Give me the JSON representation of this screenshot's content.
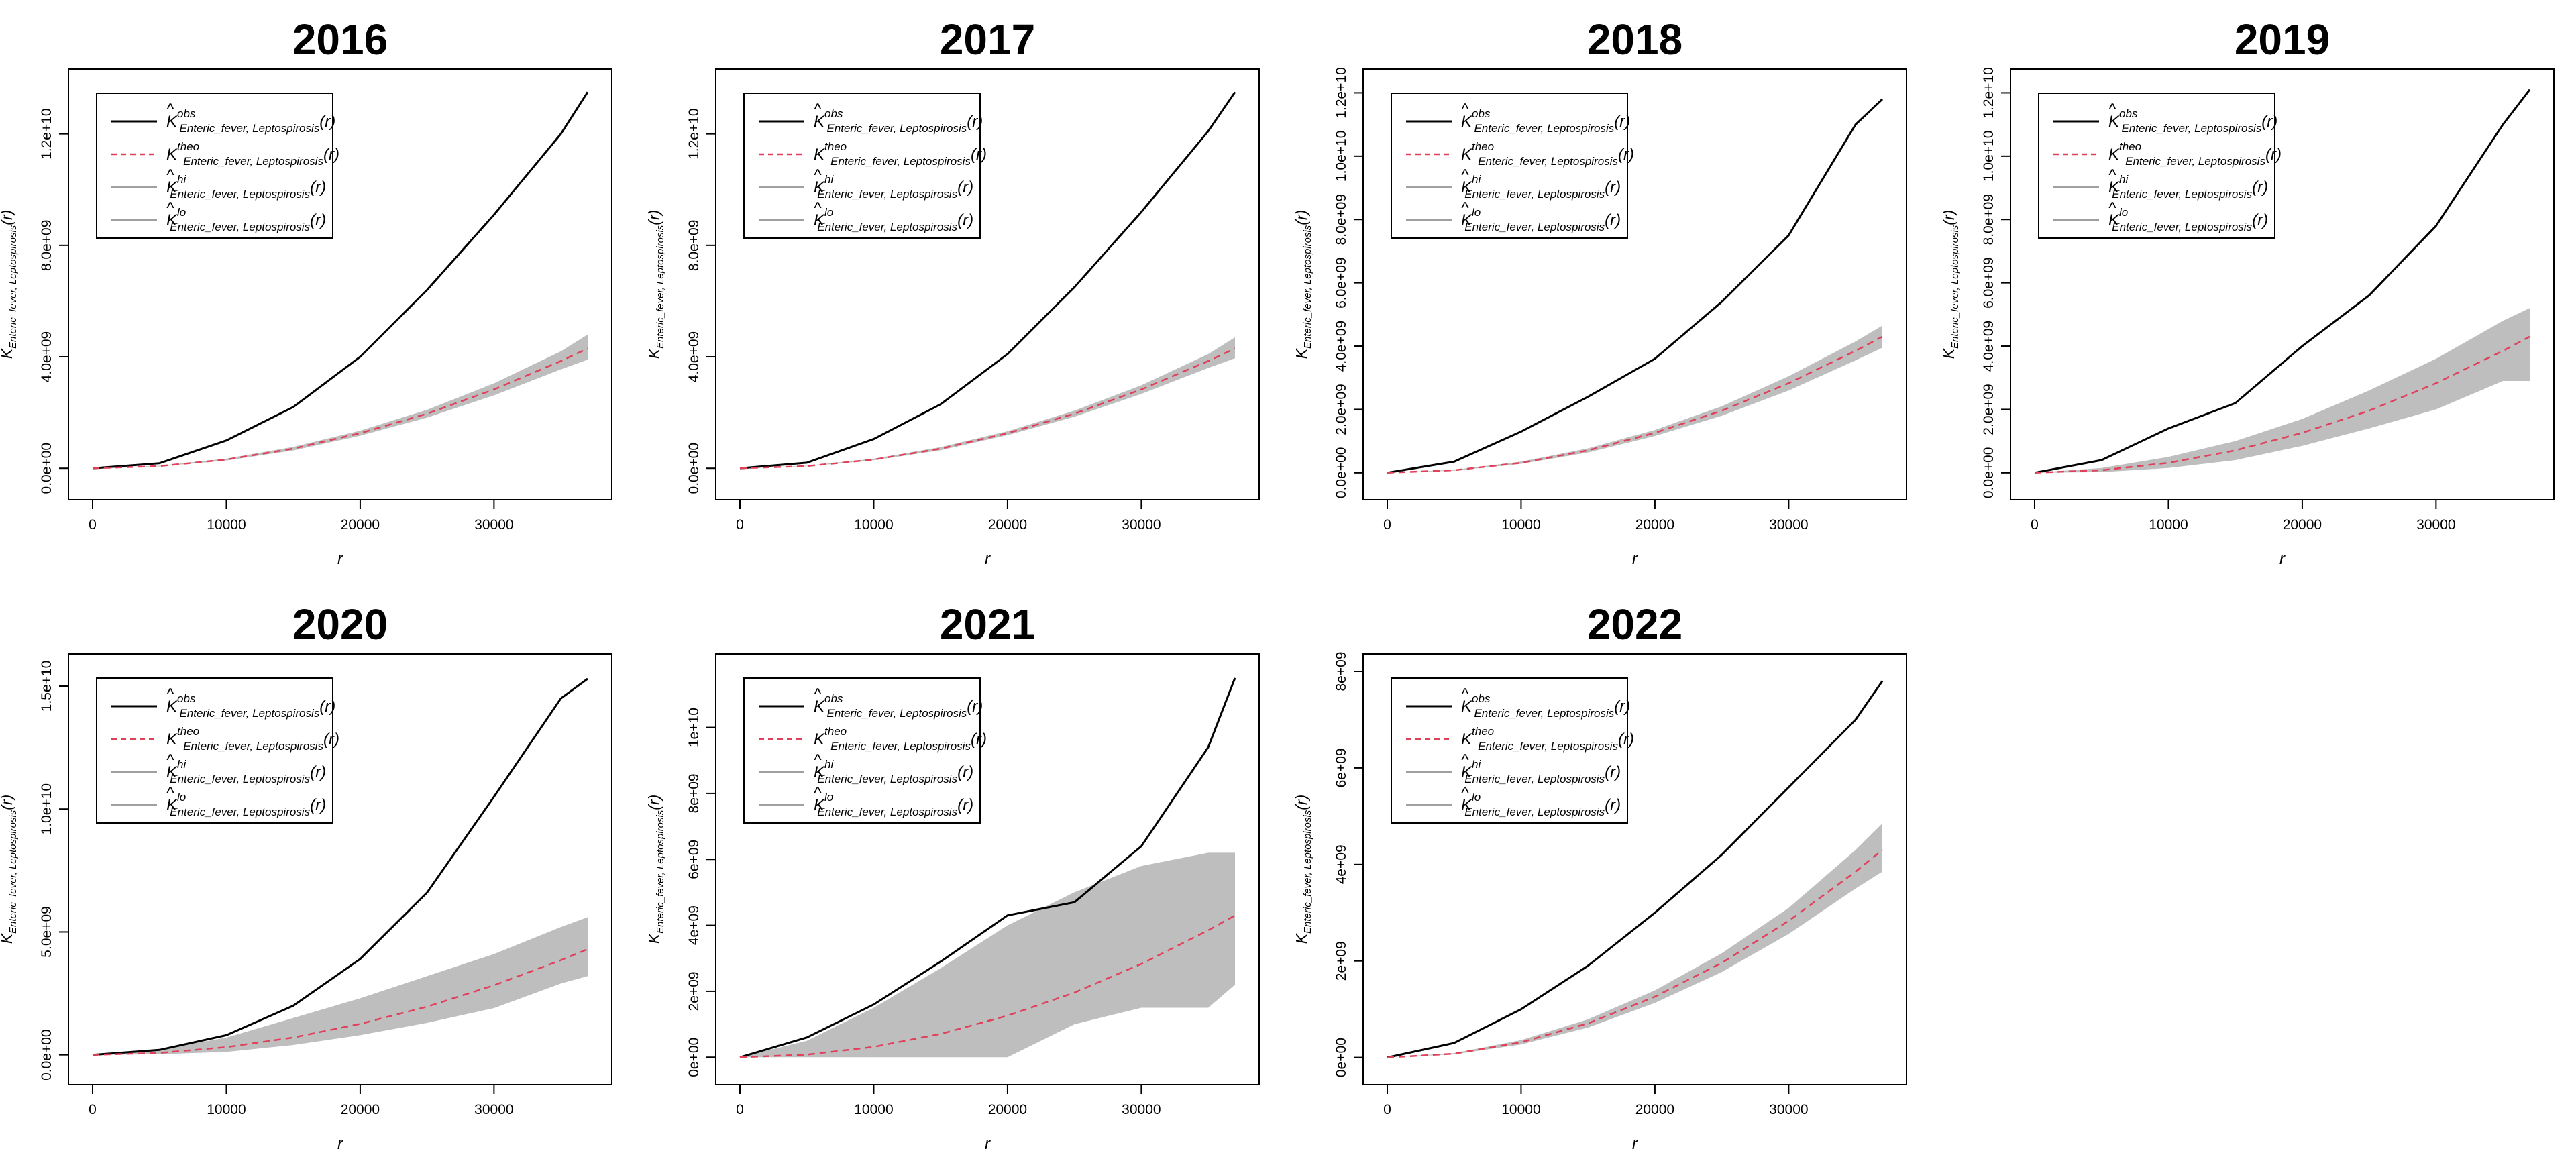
{
  "figure": {
    "panel_titles": [
      "2016",
      "2017",
      "2018",
      "2019",
      "2020",
      "2021",
      "2022"
    ],
    "xlabel": "r",
    "ylabel": {
      "main": "K",
      "sub": "Enteric_fever, Leptospirosis",
      "arg": "(r)"
    },
    "legend": [
      {
        "hat": "^",
        "main": "K",
        "sup": "obs",
        "sub": "Enteric_fever, Leptospirosis",
        "arg": "(r)",
        "style": "solid",
        "color": "#000000"
      },
      {
        "hat": "",
        "main": "K",
        "sup": "theo",
        "sub": "Enteric_fever, Leptospirosis",
        "arg": "(r)",
        "style": "dashed",
        "color": "#e0405a"
      },
      {
        "hat": "^",
        "main": "K",
        "sup": "hi",
        "sub": "Enteric_fever, Leptospirosis",
        "arg": "(r)",
        "style": "solid",
        "color": "#a0a0a0"
      },
      {
        "hat": "^",
        "main": "K",
        "sup": "lo",
        "sub": "Enteric_fever, Leptospirosis",
        "arg": "(r)",
        "style": "solid",
        "color": "#a0a0a0"
      }
    ],
    "colors": {
      "obs": "#000000",
      "theo": "#e0405a",
      "envelope": "#bebebe",
      "frame": "#000000"
    }
  },
  "chart_data": [
    {
      "type": "line",
      "title": "2016",
      "xlabel": "r",
      "ylabel": "K_{Enteric_fever, Leptospirosis}(r)",
      "xlim": [
        0,
        37000
      ],
      "ylim": [
        -500000000.0,
        13700000000.0
      ],
      "x_ticks": [
        0,
        10000,
        20000,
        30000
      ],
      "x_tick_labels": [
        "0",
        "10000",
        "20000",
        "30000"
      ],
      "y_ticks": [
        0,
        4000000000.0,
        8000000000.0,
        12000000000.0
      ],
      "y_tick_labels": [
        "0.0e+00",
        "4.0e+09",
        "8.0e+09",
        "1.2e+10"
      ],
      "x": [
        0,
        5000,
        10000,
        15000,
        20000,
        25000,
        30000,
        35000,
        37000
      ],
      "series": [
        {
          "name": "obs",
          "values": [
            0,
            180000000.0,
            1000000000.0,
            2200000000.0,
            4000000000.0,
            6400000000.0,
            9100000000.0,
            12000000000.0,
            13500000000.0
          ]
        },
        {
          "name": "theo",
          "values": [
            0,
            78500000.0,
            314000000.0,
            707000000.0,
            1260000000.0,
            1960000000.0,
            2830000000.0,
            3850000000.0,
            4300000000.0
          ]
        },
        {
          "name": "hi",
          "values": [
            0,
            90000000.0,
            350000000.0,
            770000000.0,
            1350000000.0,
            2100000000.0,
            3050000000.0,
            4200000000.0,
            4800000000.0
          ]
        },
        {
          "name": "lo",
          "values": [
            0,
            65000000.0,
            280000000.0,
            640000000.0,
            1170000000.0,
            1820000000.0,
            2620000000.0,
            3550000000.0,
            3900000000.0
          ]
        }
      ]
    },
    {
      "type": "line",
      "title": "2017",
      "xlabel": "r",
      "ylabel": "K_{Enteric_fever, Leptospirosis}(r)",
      "xlim": [
        0,
        37000
      ],
      "ylim": [
        -500000000.0,
        13700000000.0
      ],
      "x_ticks": [
        0,
        10000,
        20000,
        30000
      ],
      "x_tick_labels": [
        "0",
        "10000",
        "20000",
        "30000"
      ],
      "y_ticks": [
        0,
        4000000000.0,
        8000000000.0,
        12000000000.0
      ],
      "y_tick_labels": [
        "0.0e+00",
        "4.0e+09",
        "8.0e+09",
        "1.2e+10"
      ],
      "x": [
        0,
        5000,
        10000,
        15000,
        20000,
        25000,
        30000,
        35000,
        37000
      ],
      "series": [
        {
          "name": "obs",
          "values": [
            0,
            200000000.0,
            1050000000.0,
            2300000000.0,
            4100000000.0,
            6500000000.0,
            9200000000.0,
            12100000000.0,
            13500000000.0
          ]
        },
        {
          "name": "theo",
          "values": [
            0,
            78500000.0,
            314000000.0,
            707000000.0,
            1260000000.0,
            1960000000.0,
            2830000000.0,
            3850000000.0,
            4300000000.0
          ]
        },
        {
          "name": "hi",
          "values": [
            0,
            90000000.0,
            345000000.0,
            760000000.0,
            1330000000.0,
            2070000000.0,
            2980000000.0,
            4100000000.0,
            4700000000.0
          ]
        },
        {
          "name": "lo",
          "values": [
            0,
            68000000.0,
            290000000.0,
            650000000.0,
            1190000000.0,
            1850000000.0,
            2670000000.0,
            3600000000.0,
            3950000000.0
          ]
        }
      ]
    },
    {
      "type": "line",
      "title": "2018",
      "xlabel": "r",
      "ylabel": "K_{Enteric_fever, Leptospirosis}(r)",
      "xlim": [
        0,
        37000
      ],
      "ylim": [
        -300000000.0,
        12200000000.0
      ],
      "x_ticks": [
        0,
        10000,
        20000,
        30000
      ],
      "x_tick_labels": [
        "0",
        "10000",
        "20000",
        "30000"
      ],
      "y_ticks": [
        0,
        2000000000.0,
        4000000000.0,
        6000000000.0,
        8000000000.0,
        10000000000.0,
        12000000000.0
      ],
      "y_tick_labels": [
        "0.0e+00",
        "2.0e+09",
        "4.0e+09",
        "6.0e+09",
        "8.0e+09",
        "1.0e+10",
        "1.2e+10"
      ],
      "x": [
        0,
        5000,
        10000,
        15000,
        20000,
        25000,
        30000,
        35000,
        37000
      ],
      "series": [
        {
          "name": "obs",
          "values": [
            0,
            350000000.0,
            1300000000.0,
            2400000000.0,
            3600000000.0,
            5400000000.0,
            7500000000.0,
            11000000000.0,
            11800000000.0
          ]
        },
        {
          "name": "theo",
          "values": [
            0,
            78500000.0,
            314000000.0,
            707000000.0,
            1260000000.0,
            1960000000.0,
            2830000000.0,
            3850000000.0,
            4300000000.0
          ]
        },
        {
          "name": "hi",
          "values": [
            0,
            90000000.0,
            350000000.0,
            770000000.0,
            1350000000.0,
            2100000000.0,
            3050000000.0,
            4150000000.0,
            4650000000.0
          ]
        },
        {
          "name": "lo",
          "values": [
            0,
            65000000.0,
            280000000.0,
            640000000.0,
            1160000000.0,
            1800000000.0,
            2600000000.0,
            3550000000.0,
            3950000000.0
          ]
        }
      ]
    },
    {
      "type": "line",
      "title": "2019",
      "xlabel": "r",
      "ylabel": "K_{Enteric_fever, Leptospirosis}(r)",
      "xlim": [
        0,
        37000
      ],
      "ylim": [
        -300000000.0,
        12200000000.0
      ],
      "x_ticks": [
        0,
        10000,
        20000,
        30000
      ],
      "x_tick_labels": [
        "0",
        "10000",
        "20000",
        "30000"
      ],
      "y_ticks": [
        0,
        2000000000.0,
        4000000000.0,
        6000000000.0,
        8000000000.0,
        10000000000.0,
        12000000000.0
      ],
      "y_tick_labels": [
        "0.0e+00",
        "2.0e+09",
        "4.0e+09",
        "6.0e+09",
        "8.0e+09",
        "1.0e+10",
        "1.2e+10"
      ],
      "x": [
        0,
        5000,
        10000,
        15000,
        20000,
        25000,
        30000,
        35000,
        37000
      ],
      "series": [
        {
          "name": "obs",
          "values": [
            0,
            400000000.0,
            1400000000.0,
            2200000000.0,
            4000000000.0,
            5600000000.0,
            7800000000.0,
            11000000000.0,
            12100000000.0
          ]
        },
        {
          "name": "theo",
          "values": [
            0,
            78500000.0,
            314000000.0,
            707000000.0,
            1260000000.0,
            1960000000.0,
            2830000000.0,
            3850000000.0,
            4300000000.0
          ]
        },
        {
          "name": "hi",
          "values": [
            0,
            150000000.0,
            500000000.0,
            1000000000.0,
            1700000000.0,
            2600000000.0,
            3600000000.0,
            4800000000.0,
            5200000000.0
          ]
        },
        {
          "name": "lo",
          "values": [
            0,
            20000000.0,
            150000000.0,
            400000000.0,
            850000000.0,
            1400000000.0,
            2000000000.0,
            2900000000.0,
            2900000000.0
          ]
        }
      ]
    },
    {
      "type": "line",
      "title": "2020",
      "xlabel": "r",
      "ylabel": "K_{Enteric_fever, Leptospirosis}(r)",
      "xlim": [
        0,
        37000
      ],
      "ylim": [
        -500000000.0,
        15600000000.0
      ],
      "x_ticks": [
        0,
        10000,
        20000,
        30000
      ],
      "x_tick_labels": [
        "0",
        "10000",
        "20000",
        "30000"
      ],
      "y_ticks": [
        0,
        5000000000.0,
        10000000000.0,
        15000000000.0
      ],
      "y_tick_labels": [
        "0.0e+00",
        "5.0e+09",
        "1.0e+10",
        "1.5e+10"
      ],
      "x": [
        0,
        5000,
        10000,
        15000,
        20000,
        25000,
        30000,
        35000,
        37000
      ],
      "series": [
        {
          "name": "obs",
          "values": [
            0,
            200000000.0,
            800000000.0,
            2000000000.0,
            3900000000.0,
            6600000000.0,
            10500000000.0,
            14500000000.0,
            15300000000.0
          ]
        },
        {
          "name": "theo",
          "values": [
            0,
            78500000.0,
            314000000.0,
            707000000.0,
            1260000000.0,
            1960000000.0,
            2830000000.0,
            3850000000.0,
            4300000000.0
          ]
        },
        {
          "name": "hi",
          "values": [
            0,
            220000000.0,
            700000000.0,
            1500000000.0,
            2300000000.0,
            3200000000.0,
            4100000000.0,
            5200000000.0,
            5600000000.0
          ]
        },
        {
          "name": "lo",
          "values": [
            0,
            20000000.0,
            120000000.0,
            400000000.0,
            800000000.0,
            1300000000.0,
            1900000000.0,
            2900000000.0,
            3200000000.0
          ]
        }
      ]
    },
    {
      "type": "line",
      "title": "2021",
      "xlabel": "r",
      "ylabel": "K_{Enteric_fever, Leptospirosis}(r)",
      "xlim": [
        0,
        37000
      ],
      "ylim": [
        -300000000.0,
        11700000000.0
      ],
      "x_ticks": [
        0,
        10000,
        20000,
        30000
      ],
      "x_tick_labels": [
        "0",
        "10000",
        "20000",
        "30000"
      ],
      "y_ticks": [
        0,
        2000000000.0,
        4000000000.0,
        6000000000.0,
        8000000000.0,
        10000000000.0
      ],
      "y_tick_labels": [
        "0e+00",
        "2e+09",
        "4e+09",
        "6e+09",
        "8e+09",
        "1e+10"
      ],
      "x": [
        0,
        5000,
        10000,
        15000,
        20000,
        25000,
        30000,
        35000,
        37000
      ],
      "series": [
        {
          "name": "obs",
          "values": [
            0,
            600000000.0,
            1600000000.0,
            2900000000.0,
            4300000000.0,
            4700000000.0,
            6400000000.0,
            9400000000.0,
            11500000000.0
          ]
        },
        {
          "name": "theo",
          "values": [
            0,
            78500000.0,
            314000000.0,
            707000000.0,
            1260000000.0,
            1960000000.0,
            2830000000.0,
            3850000000.0,
            4300000000.0
          ]
        },
        {
          "name": "hi",
          "values": [
            0,
            500000000.0,
            1500000000.0,
            2700000000.0,
            4000000000.0,
            5000000000.0,
            5800000000.0,
            6200000000.0,
            6200000000.0
          ]
        },
        {
          "name": "lo",
          "values": [
            0,
            0,
            0,
            0,
            0,
            1000000000.0,
            1500000000.0,
            1500000000.0,
            2200000000.0
          ]
        }
      ]
    },
    {
      "type": "line",
      "title": "2022",
      "xlabel": "r",
      "ylabel": "K_{Enteric_fever, Leptospirosis}(r)",
      "xlim": [
        0,
        37000
      ],
      "ylim": [
        -200000000.0,
        8000000000.0
      ],
      "x_ticks": [
        0,
        10000,
        20000,
        30000
      ],
      "x_tick_labels": [
        "0",
        "10000",
        "20000",
        "30000"
      ],
      "y_ticks": [
        0,
        2000000000.0,
        4000000000.0,
        6000000000.0,
        8000000000.0
      ],
      "y_tick_labels": [
        "0e+00",
        "2e+09",
        "4e+09",
        "6e+09",
        "8e+09"
      ],
      "x": [
        0,
        5000,
        10000,
        15000,
        20000,
        25000,
        30000,
        35000,
        37000
      ],
      "series": [
        {
          "name": "obs",
          "values": [
            0,
            300000000.0,
            1000000000.0,
            1900000000.0,
            3000000000.0,
            4200000000.0,
            5600000000.0,
            7000000000.0,
            7800000000.0
          ]
        },
        {
          "name": "theo",
          "values": [
            0,
            78500000.0,
            314000000.0,
            707000000.0,
            1260000000.0,
            1960000000.0,
            2830000000.0,
            3850000000.0,
            4300000000.0
          ]
        },
        {
          "name": "hi",
          "values": [
            0,
            90000000.0,
            360000000.0,
            790000000.0,
            1390000000.0,
            2160000000.0,
            3100000000.0,
            4300000000.0,
            4850000000.0
          ]
        },
        {
          "name": "lo",
          "values": [
            0,
            65000000.0,
            270000000.0,
            620000000.0,
            1130000000.0,
            1770000000.0,
            2560000000.0,
            3500000000.0,
            3850000000.0
          ]
        }
      ]
    }
  ]
}
